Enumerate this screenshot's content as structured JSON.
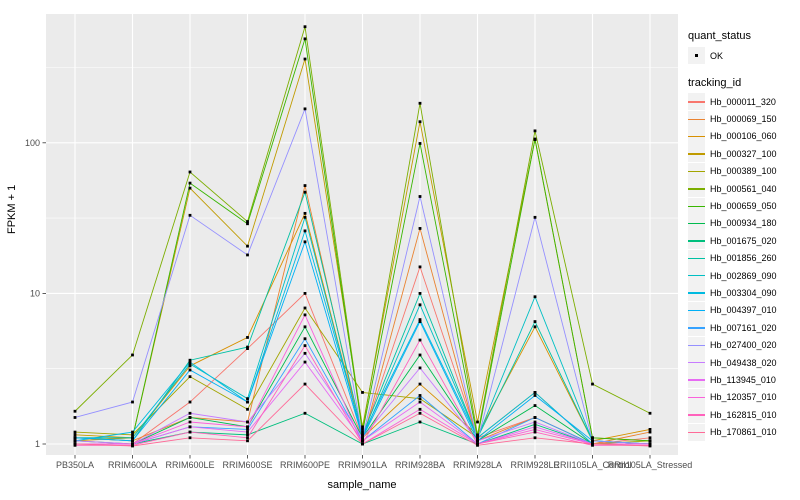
{
  "chart_data": {
    "type": "line",
    "title": "",
    "xlabel": "sample_name",
    "ylabel": "FPKM + 1",
    "y_scale": "log10",
    "y_ticks": [
      1,
      10,
      100
    ],
    "y_minor_ticks": [
      3.162,
      31.62,
      316.2
    ],
    "ylim": [
      0.85,
      720
    ],
    "grid": "white-on-gray",
    "legend_position": "right",
    "categories": [
      "PB350LA",
      "RRIM600LA",
      "RRIM600LE",
      "RRIM600SE",
      "RRIM600PE",
      "RRIM901LA",
      "RRIM928BA",
      "RRIM928LA",
      "RRIM928LE",
      "RRII105LA_Control",
      "RRII105LA_Stressed"
    ],
    "legend": {
      "quant_status": {
        "title": "quant_status",
        "items": [
          {
            "label": "OK",
            "marker": "black-point"
          }
        ]
      },
      "tracking_id": {
        "title": "tracking_id"
      }
    },
    "colors": {
      "panel_bg": "#EBEBEB",
      "grid": "#FFFFFF",
      "legend_key_bg": "#F2F2F2",
      "tick_text": "#4D4D4D",
      "tick_mark": "#333333",
      "point": "#000000"
    },
    "series": [
      {
        "name": "Hb_000011_320",
        "color": "#F8766D",
        "values": [
          1.0,
          1.0,
          1.9,
          4.3,
          10,
          1.1,
          15,
          1.1,
          1.5,
          1.0,
          1.1
        ]
      },
      {
        "name": "Hb_000069_150",
        "color": "#EA8331",
        "values": [
          1.1,
          1.05,
          1.5,
          1.4,
          52,
          1.05,
          27,
          1.05,
          1.5,
          1.0,
          1.2
        ]
      },
      {
        "name": "Hb_000106_060",
        "color": "#D89000",
        "values": [
          1.05,
          1.1,
          3.3,
          5.1,
          34,
          1.1,
          2.5,
          1.15,
          6.0,
          1.05,
          1.25
        ]
      },
      {
        "name": "Hb_000327_100",
        "color": "#C09B00",
        "values": [
          1.15,
          1.1,
          50,
          20.6,
          360,
          1.3,
          138,
          1.4,
          105,
          1.1,
          1.05
        ]
      },
      {
        "name": "Hb_000389_100",
        "color": "#A3A500",
        "values": [
          1.2,
          1.15,
          2.8,
          1.7,
          8,
          2.2,
          2.0,
          1.1,
          2.2,
          1.0,
          1.05
        ]
      },
      {
        "name": "Hb_000561_040",
        "color": "#7CAE00",
        "values": [
          1.65,
          3.9,
          64,
          30,
          590,
          1.25,
          183,
          1.15,
          120,
          2.5,
          1.6
        ]
      },
      {
        "name": "Hb_000659_050",
        "color": "#39B600",
        "values": [
          1.1,
          1.1,
          54,
          29,
          490,
          1.2,
          99,
          1.1,
          106,
          1.1,
          1.05
        ]
      },
      {
        "name": "Hb_000934_180",
        "color": "#00BB4E",
        "values": [
          1.05,
          1.0,
          1.5,
          1.3,
          6,
          1.1,
          3.9,
          1.05,
          1.8,
          1.0,
          1.0
        ]
      },
      {
        "name": "Hb_001675_020",
        "color": "#00BF7D",
        "values": [
          1.0,
          1.0,
          1.2,
          1.15,
          1.6,
          1.0,
          1.4,
          1.0,
          1.35,
          1.0,
          1.0
        ]
      },
      {
        "name": "Hb_001856_260",
        "color": "#00C1A3",
        "values": [
          1.1,
          1.05,
          3.6,
          4.4,
          47,
          1.15,
          10,
          1.1,
          6.5,
          1.05,
          1.0
        ]
      },
      {
        "name": "Hb_002869_090",
        "color": "#00BFC4",
        "values": [
          1.1,
          1.1,
          3.4,
          2.0,
          32,
          1.1,
          8.4,
          1.1,
          9.5,
          1.05,
          1.0
        ]
      },
      {
        "name": "Hb_003304_090",
        "color": "#00BAE0",
        "values": [
          1.05,
          1.2,
          3.5,
          1.9,
          26,
          1.15,
          6.7,
          1.1,
          2.2,
          1.0,
          1.0
        ]
      },
      {
        "name": "Hb_004397_010",
        "color": "#00B0F6",
        "values": [
          1.1,
          1.05,
          3.1,
          1.9,
          22,
          1.1,
          6.5,
          1.05,
          2.1,
          1.05,
          1.0
        ]
      },
      {
        "name": "Hb_007161_020",
        "color": "#35A2FF",
        "values": [
          1.0,
          1.0,
          1.3,
          1.25,
          5,
          1.05,
          2.1,
          1.0,
          1.5,
          1.0,
          1.0
        ]
      },
      {
        "name": "Hb_027400_020",
        "color": "#9590FF",
        "values": [
          1.5,
          1.9,
          33,
          18,
          168,
          1.1,
          44,
          1.05,
          32,
          1.05,
          1.0
        ]
      },
      {
        "name": "Hb_049438_020",
        "color": "#C77CFF",
        "values": [
          1.05,
          1.0,
          1.6,
          1.4,
          4,
          1.1,
          3.2,
          1.05,
          1.4,
          1.0,
          1.0
        ]
      },
      {
        "name": "Hb_113945_010",
        "color": "#E76BF3",
        "values": [
          1.0,
          1.0,
          1.3,
          1.2,
          3.5,
          1.05,
          1.9,
          1.0,
          1.3,
          1.0,
          1.0
        ]
      },
      {
        "name": "Hb_120357_010",
        "color": "#FA62DB",
        "values": [
          1.0,
          1.0,
          1.4,
          1.3,
          7.2,
          1.0,
          1.7,
          1.0,
          1.25,
          1.0,
          1.0
        ]
      },
      {
        "name": "Hb_162815_010",
        "color": "#FF62BC",
        "values": [
          0.98,
          0.98,
          1.2,
          1.1,
          4.5,
          1.0,
          4.9,
          1.0,
          1.2,
          0.98,
          0.98
        ]
      },
      {
        "name": "Hb_170861_010",
        "color": "#FF6A98",
        "values": [
          1.0,
          0.97,
          1.1,
          1.05,
          2.5,
          1.0,
          1.6,
          0.98,
          1.1,
          1.0,
          0.97
        ]
      }
    ]
  }
}
